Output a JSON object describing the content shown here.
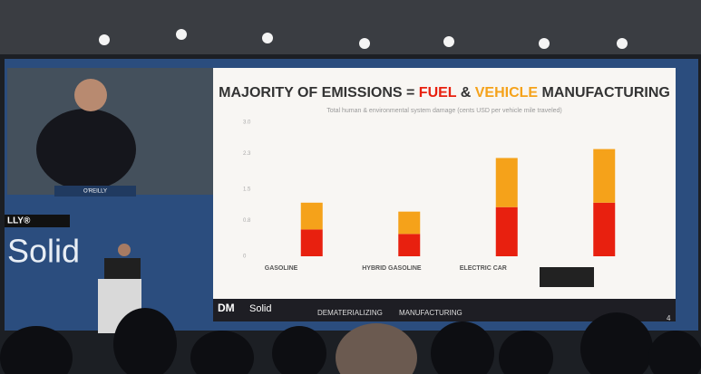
{
  "chart_data": {
    "type": "bar",
    "stacked": true,
    "title_parts": [
      "MAJORITY OF EMISSIONS = ",
      "FUEL",
      " & ",
      "VEHICLE",
      " MANUFACTURING"
    ],
    "title_colors": [
      "#333333",
      "#e8200f",
      "#333333",
      "#f5a21a",
      "#333333"
    ],
    "subtitle": "Total human & environmental system damage (cents USD per vehicle mile traveled)",
    "categories": [
      "GASOLINE",
      "HYBRID GASOLINE",
      "ELECTRIC CAR",
      null
    ],
    "series": [
      {
        "color": "#e8200f",
        "values": [
          0.6,
          0.5,
          1.1,
          1.2
        ]
      },
      {
        "color": "#f5a21a",
        "values": [
          0.6,
          0.5,
          1.1,
          1.2
        ]
      }
    ],
    "ylim": [
      0,
      3
    ],
    "yticks": [
      0,
      0.8,
      1.5,
      2.3,
      {
        "value": 3,
        "label": "3.0"
      }
    ],
    "grid": false
  },
  "stage": {
    "slide_brand": "DM",
    "slide_brand2": "Solid",
    "footer_left": "DEMATERIALIZING",
    "footer_right": "MANUFACTURING",
    "page_number": "4",
    "side_logo": "Solid",
    "side_company": "LLY®",
    "podium_label": "O'REILLY"
  }
}
